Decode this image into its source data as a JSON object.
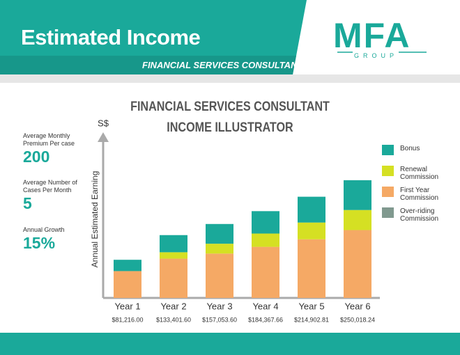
{
  "header": {
    "title": "Estimated Income",
    "subtitle": "FINANCIAL SERVICES CONSULTANT",
    "logo": "MFA",
    "logo_sub": "GROUP"
  },
  "inputs": [
    {
      "label": "Average Monthly Premium Per case",
      "value": "200"
    },
    {
      "label": "Average Number of Cases Per Month",
      "value": "5"
    },
    {
      "label": "Annual Growth",
      "value": "15%"
    }
  ],
  "chart_data": {
    "type": "stacked_bar",
    "title": [
      "FINANCIAL SERVICES CONSULTANT",
      "INCOME ILLUSTRATOR"
    ],
    "y_unit": "S$",
    "ylabel": "Annual Estimated Earning",
    "categories": [
      "Year 1",
      "Year 2",
      "Year 3",
      "Year 4",
      "Year 5",
      "Year 6"
    ],
    "series": [
      {
        "name": "Over-riding Commission",
        "color": "#80998f",
        "values": [
          0,
          0,
          0,
          0,
          0,
          0
        ]
      },
      {
        "name": "First Year Commission",
        "color": "#f5a965",
        "values": [
          57000,
          83400,
          94200,
          108500,
          124500,
          144100
        ]
      },
      {
        "name": "Renewal Commission",
        "color": "#d5e023",
        "values": [
          0,
          13600,
          20900,
          28200,
          35600,
          42600
        ]
      },
      {
        "name": "Bonus",
        "color": "#1aa99a",
        "values": [
          24000,
          36400,
          41900,
          47600,
          54800,
          63300
        ]
      }
    ],
    "totals": [
      81216.0,
      133401.6,
      157053.6,
      184367.66,
      214902.81,
      250018.24
    ],
    "total_labels": [
      "$81,216.00",
      "$133,401.60",
      "$157,053.60",
      "$184,367.66",
      "$214,902.81",
      "$250,018.24"
    ],
    "ylim": [
      0,
      340000
    ]
  }
}
